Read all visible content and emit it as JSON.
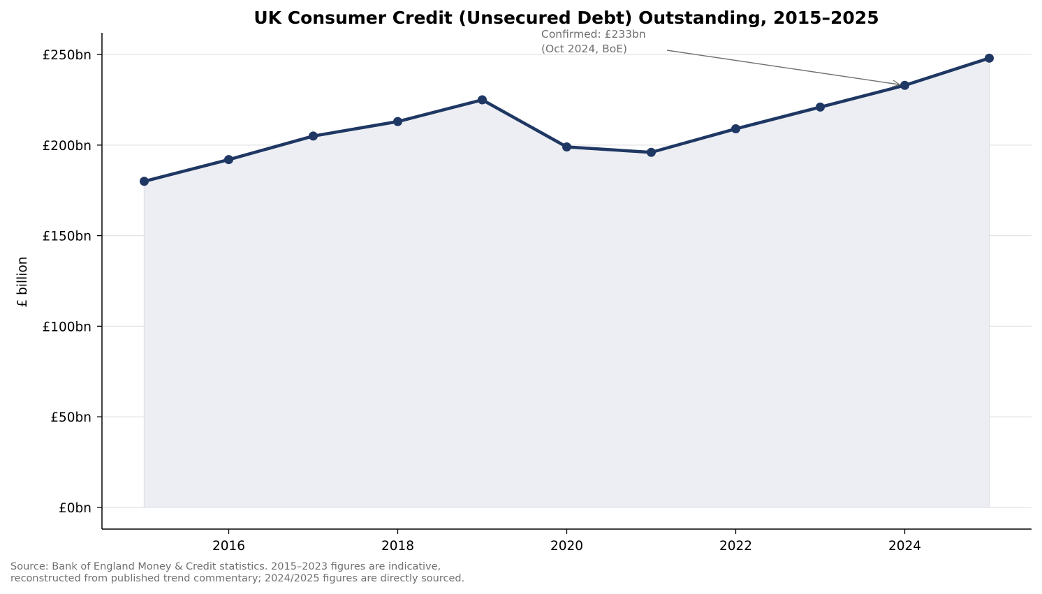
{
  "chart_data": {
    "type": "area",
    "title": "UK Consumer Credit (Unsecured Debt) Outstanding, 2015–2025",
    "xlabel": "",
    "ylabel": "£ billion",
    "x": [
      2015,
      2016,
      2017,
      2018,
      2019,
      2020,
      2021,
      2022,
      2023,
      2024,
      2025
    ],
    "series": [
      {
        "values": [
          180,
          192,
          205,
          213,
          225,
          199,
          196,
          209,
          221,
          233,
          248
        ]
      }
    ],
    "xlim": [
      2014.5,
      2025.5
    ],
    "ylim": [
      -12,
      262
    ],
    "x_ticks": [
      2016,
      2018,
      2020,
      2022,
      2024
    ],
    "x_tick_labels": [
      "2016",
      "2018",
      "2020",
      "2022",
      "2024"
    ],
    "y_ticks": [
      0,
      50,
      100,
      150,
      200,
      250
    ],
    "y_tick_labels": [
      "£0bn",
      "£50bn",
      "£100bn",
      "£150bn",
      "£200bn",
      "£250bn"
    ],
    "grid": "horizontal",
    "annotation": {
      "lines": [
        "Confirmed: £233bn",
        "(Oct 2024, BoE)"
      ],
      "target": {
        "x": 2024,
        "y": 233
      }
    },
    "source_lines": [
      "Source: Bank of England Money & Credit statistics. 2015–2023 figures are indicative,",
      "reconstructed from published trend commentary; 2024/2025 figures are directly sourced."
    ],
    "colors": {
      "line": "#1f3763",
      "area": "#eceef3",
      "grid": "#e3e3e3",
      "annotation": "#707070"
    }
  }
}
